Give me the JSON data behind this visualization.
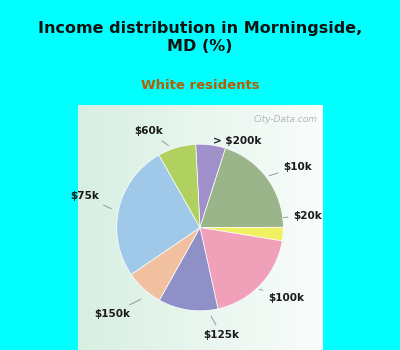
{
  "title": "Income distribution in Morningside,\nMD (%)",
  "subtitle": "White residents",
  "title_color": "#111111",
  "subtitle_color": "#b85c00",
  "background_cyan": "#00ffff",
  "labels": [
    "> $200k",
    "$10k",
    "$20k",
    "$100k",
    "$125k",
    "$150k",
    "$75k",
    "$60k"
  ],
  "sizes": [
    5.5,
    19,
    2.5,
    18,
    11,
    7,
    25,
    7
  ],
  "colors": [
    "#a090cc",
    "#9ab58a",
    "#f0f060",
    "#f0a0b8",
    "#9090c8",
    "#f0c0a0",
    "#a0c8e8",
    "#b0d060"
  ],
  "startangle": 93,
  "label_fontsize": 7.5,
  "title_fontsize": 11.5,
  "subtitle_fontsize": 9.5
}
